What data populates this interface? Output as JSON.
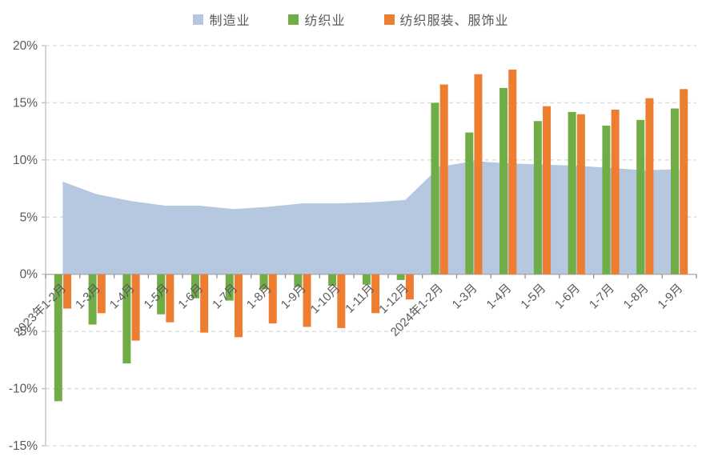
{
  "chart_data": {
    "type": "combo-area-bar",
    "title": "",
    "xlabel": "",
    "ylabel": "",
    "categories": [
      "2023年1-2月",
      "1-3月",
      "1-4月",
      "1-5月",
      "1-6月",
      "1-7月",
      "1-8月",
      "1-9月",
      "1-10月",
      "1-11月",
      "1-12月",
      "2024年1-2月",
      "1-3月",
      "1-4月",
      "1-5月",
      "1-6月",
      "1-7月",
      "1-8月",
      "1-9月"
    ],
    "series": [
      {
        "name": "制造业",
        "type": "area",
        "color": "#b5c8e0",
        "values": [
          8.1,
          7.0,
          6.4,
          6.0,
          6.0,
          5.7,
          5.9,
          6.2,
          6.2,
          6.3,
          6.5,
          9.4,
          9.9,
          9.7,
          9.6,
          9.5,
          9.3,
          9.1,
          9.2
        ]
      },
      {
        "name": "纺织业",
        "type": "bar",
        "color": "#70ad47",
        "values": [
          -11.1,
          -4.4,
          -7.8,
          -3.5,
          -2.1,
          -2.3,
          -1.3,
          -1.1,
          -1.0,
          -0.9,
          -0.5,
          15.0,
          12.4,
          16.3,
          13.4,
          14.2,
          13.0,
          13.5,
          14.5
        ]
      },
      {
        "name": "纺织服装、服饰业",
        "type": "bar",
        "color": "#ed7d31",
        "values": [
          -3.0,
          -3.4,
          -5.8,
          -4.2,
          -5.1,
          -5.5,
          -4.3,
          -4.6,
          -4.7,
          -3.4,
          -2.2,
          16.6,
          17.5,
          17.9,
          14.7,
          14.0,
          14.4,
          15.4,
          16.2
        ]
      }
    ],
    "ylim": [
      -15,
      20
    ],
    "ytick_step": 5,
    "ytick_labels": [
      "20%",
      "15%",
      "10%",
      "5%",
      "0%",
      "-5%",
      "-10%",
      "-15%"
    ],
    "grid": true,
    "gridline_style": "dashed",
    "legend_position": "top"
  },
  "colors": {
    "background": "#ffffff",
    "gridline": "#d9d9d9",
    "axis_line": "#bfbfbf",
    "zero_line": "#a6a6a6",
    "tick": "#8f8f8f",
    "text": "#595959"
  }
}
